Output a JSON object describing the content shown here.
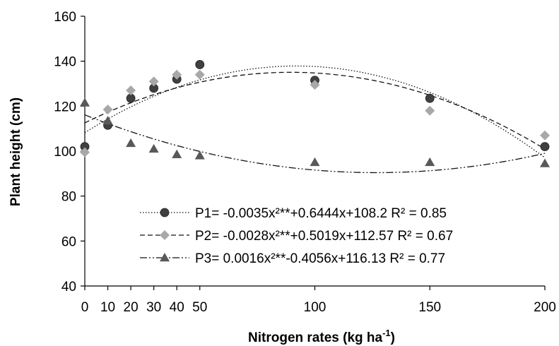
{
  "chart_data": {
    "type": "scatter",
    "title": "",
    "xlabel": "Nitrogen rates (kg ha",
    "xlabel_sup": "-1",
    "xlabel_suffix": ")",
    "ylabel": "Plant height (cm)",
    "xlim": [
      0,
      200
    ],
    "ylim": [
      40,
      160
    ],
    "xticks": [
      0,
      10,
      20,
      30,
      40,
      50,
      100,
      150,
      200
    ],
    "xtick_labels": [
      "0",
      "10",
      "20",
      "30",
      "40",
      "50",
      "100",
      "150",
      "200"
    ],
    "yticks": [
      40,
      60,
      80,
      100,
      120,
      140,
      160
    ],
    "ytick_labels": [
      "40",
      "60",
      "80",
      "100",
      "120",
      "140",
      "160"
    ],
    "grid": false,
    "legend_position": "bottom-right",
    "x": [
      0,
      10,
      20,
      30,
      40,
      50,
      100,
      150,
      200
    ],
    "series": [
      {
        "name": "P1",
        "marker": "circle",
        "color": "#404040",
        "line_style": "dotted",
        "values": [
          102,
          111.5,
          123.5,
          128,
          132,
          138.5,
          131.5,
          123.5,
          102
        ],
        "fit": {
          "a": -0.0035,
          "b": 0.6444,
          "c": 108.2
        },
        "equation": "P1= -0.0035x²**+0.6444x+108.2 R² = 0.85"
      },
      {
        "name": "P2",
        "marker": "diamond",
        "color": "#a8a8a8",
        "line_style": "dashed",
        "values": [
          99.5,
          118.5,
          127,
          131,
          134,
          134,
          129.5,
          118,
          107
        ],
        "fit": {
          "a": -0.0028,
          "b": 0.5019,
          "c": 112.57
        },
        "equation": "P2= -0.0028x²**+0.5019x+112.57 R² = 0.67"
      },
      {
        "name": "P3",
        "marker": "triangle",
        "color": "#595959",
        "line_style": "dash-dot-dot",
        "values": [
          121.5,
          113.5,
          103.5,
          101,
          98.5,
          98,
          95,
          95,
          94.5
        ],
        "fit": {
          "a": 0.0016,
          "b": -0.4056,
          "c": 116.13
        },
        "equation": "P3= 0.0016x²**-0.4056x+116.13 R² = 0.77"
      }
    ]
  }
}
